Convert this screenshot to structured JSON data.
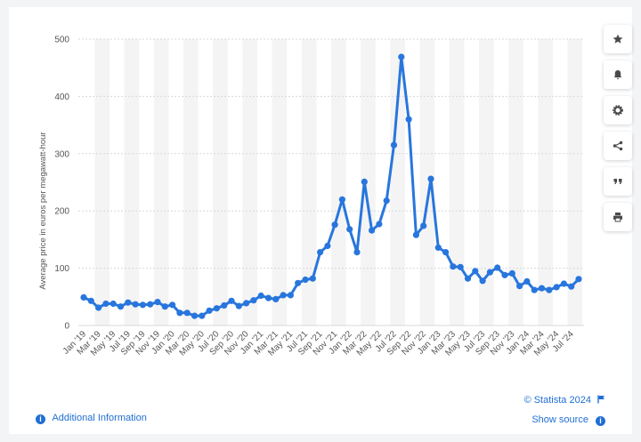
{
  "chart_data": {
    "type": "line",
    "title": "",
    "xlabel": "",
    "ylabel": "Average price in euros per megawatt-hour",
    "ylim": [
      0,
      500
    ],
    "yticks": [
      0,
      100,
      200,
      300,
      400,
      500
    ],
    "grid": true,
    "x": [
      "Jan '19",
      "Feb '19",
      "Mar '19",
      "Apr '19",
      "May '19",
      "Jun '19",
      "Jul '19",
      "Aug '19",
      "Sep '19",
      "Oct '19",
      "Nov '19",
      "Dec '19",
      "Jan '20",
      "Feb '20",
      "Mar '20",
      "Apr '20",
      "May '20",
      "Jun '20",
      "Jul '20",
      "Aug '20",
      "Sep '20",
      "Oct '20",
      "Nov '20",
      "Dec '20",
      "Jan '21",
      "Feb '21",
      "Mar '21",
      "Apr '21",
      "May '21",
      "Jun '21",
      "Jul '21",
      "Aug '21",
      "Sep '21",
      "Oct '21",
      "Nov '21",
      "Dec '21",
      "Jan '22",
      "Feb '22",
      "Mar '22",
      "Apr '22",
      "May '22",
      "Jun '22",
      "Jul '22",
      "Aug '22",
      "Sep '22",
      "Oct '22",
      "Nov '22",
      "Dec '22",
      "Jan '23",
      "Feb '23",
      "Mar '23",
      "Apr '23",
      "May '23",
      "Jun '23",
      "Jul '23",
      "Aug '23",
      "Sep '23",
      "Oct '23",
      "Nov '23",
      "Dec '23",
      "Jan '24",
      "Feb '24",
      "Mar '24",
      "Apr '24",
      "May '24",
      "Jun '24",
      "Jul '24",
      "Aug '24"
    ],
    "xtick_labels": [
      "Jan '19",
      "Mar '19",
      "May '19",
      "Jul '19",
      "Sep '19",
      "Nov '19",
      "Jan '20",
      "Mar '20",
      "May '20",
      "Jul '20",
      "Sep '20",
      "Nov '20",
      "Jan '21",
      "Mar '21",
      "May '21",
      "Jul '21",
      "Sep '21",
      "Nov '21",
      "Jan '22",
      "Mar '22",
      "May '22",
      "Jul '22",
      "Sep '22",
      "Nov '22",
      "Jan '23",
      "Mar '23",
      "May '23",
      "Jul '23",
      "Sep '23",
      "Nov '23",
      "Jan '24",
      "Mar '24",
      "May '24",
      "Jul '24"
    ],
    "series": [
      {
        "name": "Average price",
        "color": "#2876dd",
        "values": [
          49,
          43,
          31,
          38,
          38,
          33,
          40,
          37,
          36,
          37,
          41,
          33,
          36,
          22,
          22,
          17,
          17,
          26,
          30,
          35,
          43,
          34,
          39,
          44,
          52,
          48,
          46,
          53,
          53,
          74,
          80,
          82,
          128,
          139,
          176,
          220,
          168,
          128,
          251,
          166,
          177,
          218,
          315,
          469,
          360,
          158,
          174,
          256,
          136,
          128,
          103,
          102,
          82,
          95,
          78,
          93,
          101,
          88,
          91,
          69,
          77,
          62,
          65,
          62,
          67,
          73,
          68,
          81
        ]
      }
    ]
  },
  "side_buttons": [
    {
      "name": "star-icon",
      "label": "favorite"
    },
    {
      "name": "bell-icon",
      "label": "notify"
    },
    {
      "name": "gear-icon",
      "label": "settings"
    },
    {
      "name": "share-icon",
      "label": "share"
    },
    {
      "name": "quote-icon",
      "label": "cite"
    },
    {
      "name": "print-icon",
      "label": "print"
    }
  ],
  "footer": {
    "copyright": "© Statista 2024",
    "show_source": "Show source",
    "additional_info": "Additional Information"
  },
  "colors": {
    "line": "#2876dd",
    "accent": "#1f6ed4",
    "band": "#f4f4f4",
    "grid": "#d8d8d8"
  }
}
